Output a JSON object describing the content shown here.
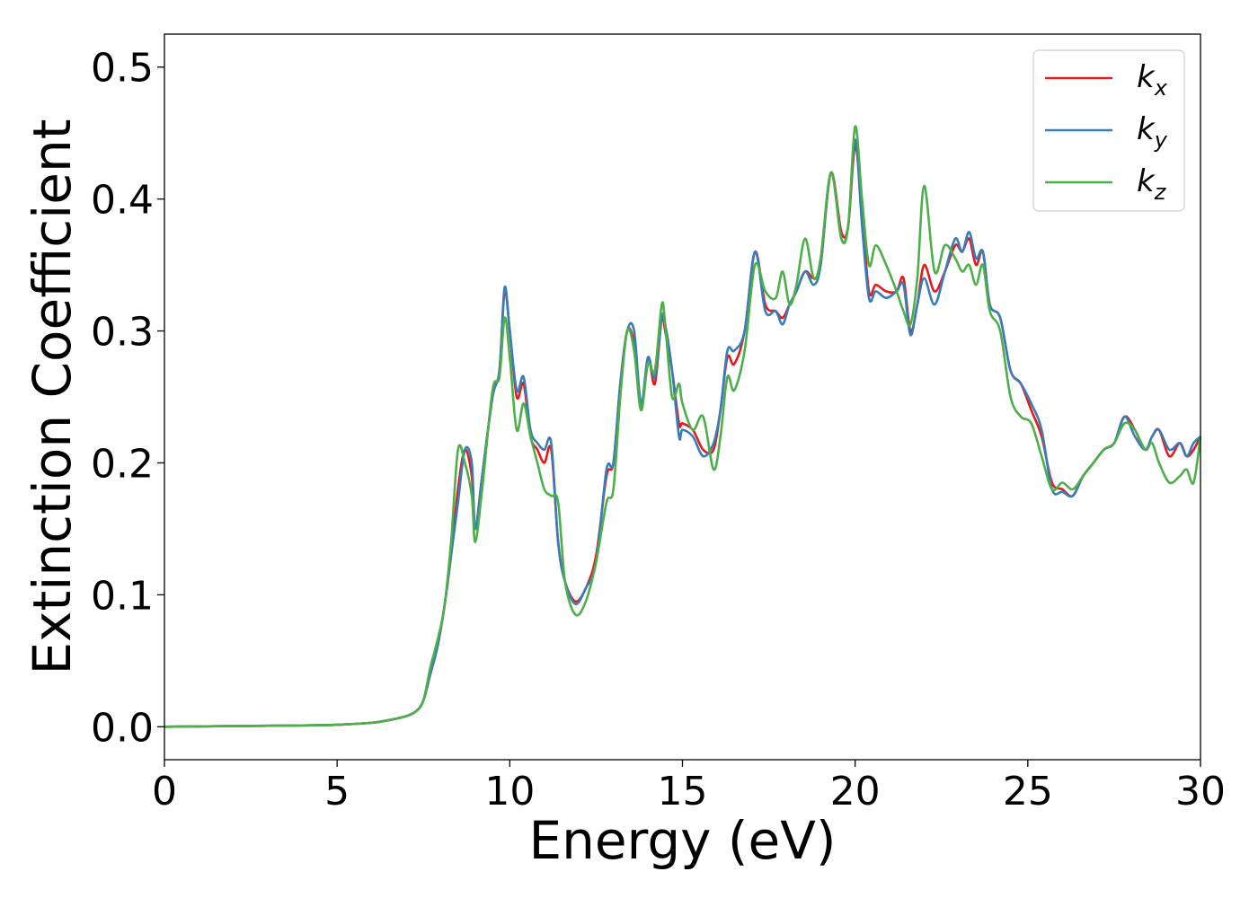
{
  "chart_data": {
    "type": "line",
    "xlabel": "Energy (eV)",
    "ylabel": "Extinction Coefficient",
    "xlim": [
      0,
      30
    ],
    "ylim": [
      -0.025,
      0.525
    ],
    "xticks": [
      0,
      5,
      10,
      15,
      20,
      25,
      30
    ],
    "yticks": [
      0.0,
      0.1,
      0.2,
      0.3,
      0.4,
      0.5
    ],
    "xtick_labels": [
      "0",
      "5",
      "10",
      "15",
      "20",
      "25",
      "30"
    ],
    "ytick_labels": [
      "0.0",
      "0.1",
      "0.2",
      "0.3",
      "0.4",
      "0.5"
    ],
    "grid": false,
    "legend_position": "top-right",
    "series": [
      {
        "name": "k_x",
        "legend_base": "k",
        "legend_sub": "x",
        "color": "#e41a1c",
        "x": [
          0,
          2,
          4,
          5,
          6,
          6.5,
          7,
          7.3,
          7.5,
          7.7,
          7.9,
          8.1,
          8.3,
          8.5,
          8.7,
          8.9,
          9.0,
          9.2,
          9.5,
          9.7,
          9.85,
          10.0,
          10.2,
          10.4,
          10.6,
          10.8,
          11.0,
          11.2,
          11.4,
          11.6,
          11.9,
          12.2,
          12.5,
          12.8,
          13.0,
          13.2,
          13.4,
          13.6,
          13.8,
          14.0,
          14.2,
          14.4,
          14.5,
          14.7,
          14.9,
          15.0,
          15.3,
          15.6,
          15.9,
          16.1,
          16.3,
          16.5,
          16.8,
          17.1,
          17.4,
          17.7,
          17.9,
          18.1,
          18.3,
          18.55,
          18.8,
          19.0,
          19.3,
          19.6,
          19.8,
          20.0,
          20.2,
          20.4,
          20.6,
          20.9,
          21.2,
          21.4,
          21.6,
          21.8,
          22.0,
          22.3,
          22.6,
          22.9,
          23.1,
          23.3,
          23.5,
          23.7,
          23.9,
          24.2,
          24.5,
          24.8,
          25.1,
          25.4,
          25.7,
          26.0,
          26.3,
          26.6,
          26.9,
          27.2,
          27.5,
          27.8,
          28.1,
          28.4,
          28.6,
          28.8,
          29.1,
          29.4,
          29.6,
          29.8,
          30
        ],
        "values": [
          0.0,
          0.0005,
          0.001,
          0.0015,
          0.003,
          0.005,
          0.008,
          0.012,
          0.02,
          0.04,
          0.06,
          0.09,
          0.13,
          0.18,
          0.21,
          0.19,
          0.15,
          0.19,
          0.25,
          0.27,
          0.33,
          0.3,
          0.25,
          0.26,
          0.22,
          0.21,
          0.2,
          0.21,
          0.14,
          0.11,
          0.095,
          0.105,
          0.13,
          0.19,
          0.2,
          0.26,
          0.3,
          0.29,
          0.24,
          0.28,
          0.26,
          0.31,
          0.3,
          0.27,
          0.23,
          0.23,
          0.225,
          0.21,
          0.21,
          0.24,
          0.28,
          0.275,
          0.3,
          0.36,
          0.32,
          0.315,
          0.31,
          0.32,
          0.33,
          0.345,
          0.34,
          0.35,
          0.42,
          0.375,
          0.38,
          0.44,
          0.39,
          0.33,
          0.335,
          0.33,
          0.33,
          0.34,
          0.3,
          0.32,
          0.35,
          0.33,
          0.345,
          0.365,
          0.36,
          0.37,
          0.35,
          0.36,
          0.32,
          0.31,
          0.27,
          0.26,
          0.24,
          0.22,
          0.185,
          0.18,
          0.175,
          0.19,
          0.2,
          0.21,
          0.215,
          0.235,
          0.225,
          0.21,
          0.22,
          0.225,
          0.205,
          0.215,
          0.205,
          0.21,
          0.22
        ]
      },
      {
        "name": "k_y",
        "legend_base": "k",
        "legend_sub": "y",
        "color": "#377eb8",
        "x": [
          0,
          2,
          4,
          5,
          6,
          6.5,
          7,
          7.3,
          7.5,
          7.7,
          7.9,
          8.1,
          8.3,
          8.5,
          8.7,
          8.9,
          9.0,
          9.2,
          9.5,
          9.7,
          9.85,
          10.0,
          10.2,
          10.4,
          10.6,
          10.8,
          11.0,
          11.2,
          11.4,
          11.6,
          11.9,
          12.2,
          12.5,
          12.8,
          13.0,
          13.2,
          13.4,
          13.6,
          13.8,
          14.0,
          14.2,
          14.4,
          14.5,
          14.7,
          14.9,
          15.0,
          15.3,
          15.6,
          15.9,
          16.1,
          16.3,
          16.5,
          16.8,
          17.1,
          17.4,
          17.7,
          17.9,
          18.1,
          18.3,
          18.55,
          18.8,
          19.0,
          19.3,
          19.6,
          19.8,
          20.0,
          20.2,
          20.4,
          20.6,
          20.9,
          21.2,
          21.4,
          21.6,
          21.8,
          22.0,
          22.3,
          22.6,
          22.9,
          23.1,
          23.3,
          23.5,
          23.7,
          23.9,
          24.2,
          24.5,
          24.8,
          25.1,
          25.4,
          25.7,
          26.0,
          26.3,
          26.6,
          26.9,
          27.2,
          27.5,
          27.8,
          28.1,
          28.4,
          28.6,
          28.8,
          29.1,
          29.4,
          29.6,
          29.8,
          30
        ],
        "values": [
          0.0,
          0.0005,
          0.001,
          0.0015,
          0.003,
          0.005,
          0.008,
          0.012,
          0.02,
          0.04,
          0.06,
          0.09,
          0.13,
          0.17,
          0.21,
          0.2,
          0.15,
          0.19,
          0.25,
          0.27,
          0.333,
          0.3,
          0.255,
          0.265,
          0.225,
          0.215,
          0.21,
          0.215,
          0.14,
          0.11,
          0.093,
          0.105,
          0.125,
          0.195,
          0.2,
          0.26,
          0.3,
          0.3,
          0.245,
          0.28,
          0.265,
          0.31,
          0.305,
          0.27,
          0.22,
          0.225,
          0.22,
          0.205,
          0.215,
          0.24,
          0.285,
          0.285,
          0.3,
          0.36,
          0.315,
          0.315,
          0.305,
          0.32,
          0.33,
          0.345,
          0.335,
          0.35,
          0.42,
          0.37,
          0.38,
          0.445,
          0.38,
          0.325,
          0.33,
          0.325,
          0.33,
          0.335,
          0.297,
          0.32,
          0.34,
          0.32,
          0.345,
          0.37,
          0.36,
          0.375,
          0.355,
          0.36,
          0.32,
          0.31,
          0.27,
          0.26,
          0.245,
          0.225,
          0.18,
          0.178,
          0.175,
          0.19,
          0.2,
          0.21,
          0.215,
          0.235,
          0.22,
          0.21,
          0.22,
          0.225,
          0.21,
          0.215,
          0.205,
          0.215,
          0.22
        ]
      },
      {
        "name": "k_z",
        "legend_base": "k",
        "legend_sub": "z",
        "color": "#4daf4a",
        "x": [
          0,
          2,
          4,
          5,
          6,
          6.5,
          7,
          7.3,
          7.5,
          7.7,
          7.9,
          8.1,
          8.3,
          8.5,
          8.7,
          8.9,
          9.0,
          9.2,
          9.5,
          9.7,
          9.85,
          10.0,
          10.2,
          10.4,
          10.6,
          10.8,
          11.0,
          11.2,
          11.4,
          11.6,
          11.9,
          12.2,
          12.5,
          12.8,
          13.0,
          13.2,
          13.4,
          13.6,
          13.8,
          14.0,
          14.2,
          14.4,
          14.5,
          14.7,
          14.9,
          15.0,
          15.3,
          15.6,
          15.9,
          16.1,
          16.3,
          16.5,
          16.8,
          17.1,
          17.4,
          17.7,
          17.9,
          18.1,
          18.3,
          18.55,
          18.8,
          19.0,
          19.3,
          19.6,
          19.8,
          20.0,
          20.2,
          20.4,
          20.6,
          20.9,
          21.2,
          21.4,
          21.6,
          21.8,
          22.0,
          22.3,
          22.6,
          22.9,
          23.1,
          23.3,
          23.5,
          23.7,
          23.9,
          24.2,
          24.5,
          24.8,
          25.1,
          25.4,
          25.7,
          26.0,
          26.3,
          26.6,
          26.9,
          27.2,
          27.5,
          27.8,
          28.1,
          28.4,
          28.6,
          28.8,
          29.1,
          29.4,
          29.6,
          29.8,
          30
        ],
        "values": [
          0.0,
          0.0005,
          0.001,
          0.0015,
          0.003,
          0.005,
          0.008,
          0.012,
          0.02,
          0.045,
          0.065,
          0.09,
          0.14,
          0.21,
          0.2,
          0.175,
          0.14,
          0.18,
          0.255,
          0.265,
          0.31,
          0.28,
          0.225,
          0.245,
          0.22,
          0.2,
          0.18,
          0.175,
          0.17,
          0.11,
          0.085,
          0.095,
          0.125,
          0.17,
          0.18,
          0.25,
          0.3,
          0.285,
          0.24,
          0.275,
          0.27,
          0.32,
          0.305,
          0.25,
          0.26,
          0.245,
          0.225,
          0.235,
          0.195,
          0.22,
          0.265,
          0.255,
          0.285,
          0.35,
          0.33,
          0.325,
          0.345,
          0.32,
          0.335,
          0.37,
          0.34,
          0.355,
          0.42,
          0.37,
          0.38,
          0.455,
          0.4,
          0.35,
          0.365,
          0.35,
          0.33,
          0.315,
          0.305,
          0.34,
          0.41,
          0.345,
          0.365,
          0.355,
          0.345,
          0.35,
          0.335,
          0.35,
          0.315,
          0.3,
          0.25,
          0.235,
          0.23,
          0.205,
          0.18,
          0.185,
          0.18,
          0.19,
          0.2,
          0.21,
          0.215,
          0.23,
          0.225,
          0.21,
          0.215,
          0.2,
          0.185,
          0.19,
          0.195,
          0.185,
          0.22
        ]
      }
    ]
  }
}
